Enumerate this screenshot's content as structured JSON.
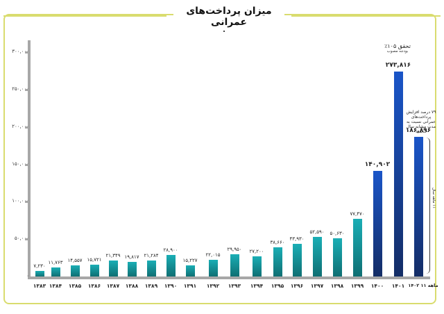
{
  "title": "میزان پرداخت‌های عمرانی",
  "colors": {
    "frame": "#d9dc6e",
    "teal_top": "#1aaeb5",
    "teal_bottom": "#0f6f73",
    "blue_top": "#1a55c8",
    "blue_bottom": "#142d66",
    "axis": "#a7a7a7"
  },
  "y_ticks": [
    "۳۰۰,۰۰۰",
    "۲۵۰,۰۰۰",
    "۲۰۰,۰۰۰",
    "۱۵۰,۰۰۰",
    "۱۰۰,۰۰۰",
    "۵۰,۰۰۰",
    "۰"
  ],
  "annotations": {
    "achievement_line1": "تحقق ۱۰۵٪",
    "achievement_line2": "بودجه مصوب",
    "increase_note": "۷۹ درصد افزایش پرداخت‌های عمرانی نسبت به مدت مشابه سال گذشته",
    "brace_label": "۱۱ ماهه سال"
  },
  "chart_data": {
    "type": "bar",
    "title": "میزان پرداخت‌های عمرانی",
    "xlabel": "",
    "ylabel": "",
    "ylim": [
      0,
      300000
    ],
    "grid": false,
    "legend": null,
    "categories": [
      "۱۳۸۳",
      "۱۳۸۴",
      "۱۳۸۵",
      "۱۳۸۶",
      "۱۳۸۷",
      "۱۳۸۸",
      "۱۳۸۹",
      "۱۳۹۰",
      "۱۳۹۱",
      "۱۳۹۲",
      "۱۳۹۳",
      "۱۳۹۴",
      "۱۳۹۵",
      "۱۳۹۶",
      "۱۳۹۷",
      "۱۳۹۸",
      "۱۳۹۹",
      "۱۴۰۰",
      "۱۴۰۱",
      "۱۴۰۲ ۱۱ ماهه"
    ],
    "values": [
      7230,
      11763,
      14557,
      15721,
      21349,
      19817,
      21284,
      28900,
      15227,
      22015,
      29950,
      27200,
      38660,
      43930,
      52590,
      50630,
      77470,
      140902,
      273816,
      186896
    ],
    "value_labels": [
      "۷,۲۳۰",
      "۱۱,۷۶۳",
      "۱۴,۵۵۷",
      "۱۵,۷۲۱",
      "۲۱,۳۴۹",
      "۱۹,۸۱۷",
      "۲۱,۲۸۴",
      "۲۸,۹۰۰",
      "۱۵,۲۲۷",
      "۲۲,۰۱۵",
      "۲۹,۹۵۰",
      "۲۷,۲۰۰",
      "۳۸,۶۶۰",
      "۴۳,۹۳۰",
      "۵۲,۵۹۰",
      "۵۰,۶۳۰",
      "۷۷,۴۷۰",
      "۱۴۰,۹۰۲",
      "۲۷۳,۸۱۶",
      "۱۸۶,۸۹۶"
    ],
    "annotations": [
      "تحقق ۱۰۵٪ بودجه مصوب",
      "۷۹ درصد افزایش پرداخت‌های عمرانی نسبت به مدت مشابه سال گذشته",
      "۱۱ ماهه سال"
    ]
  }
}
